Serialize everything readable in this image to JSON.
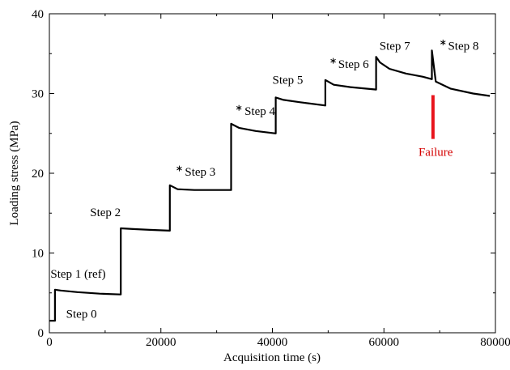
{
  "chart_data": {
    "type": "line",
    "xlabel": "Acquisition time (s)",
    "ylabel": "Loading stress (MPa)",
    "xlim": [
      0,
      80000
    ],
    "ylim": [
      0,
      40
    ],
    "x_ticks": [
      0,
      20000,
      40000,
      60000,
      80000
    ],
    "y_ticks": [
      0,
      10,
      20,
      30,
      40
    ],
    "grid": false,
    "colors": {
      "series": "#000000",
      "failure": "#e8141c"
    },
    "series": [
      {
        "x": [
          0,
          1000,
          1000,
          1000,
          2000,
          5000,
          9000,
          12800,
          12800,
          12800,
          15000,
          18000,
          21600,
          21600,
          21600,
          23000,
          26000,
          30000,
          32600,
          32600,
          32600,
          34000,
          37000,
          40600,
          40600,
          40600,
          42000,
          45000,
          49500,
          49500,
          49500,
          51000,
          54000,
          58600,
          58600,
          58600,
          59300,
          61000,
          64000,
          67000,
          68600,
          68600,
          68600,
          69300,
          72000,
          76000,
          79000
        ],
        "y": [
          1.5,
          1.5,
          4.8,
          5.4,
          5.3,
          5.1,
          4.9,
          4.8,
          11.5,
          13.1,
          13.0,
          12.9,
          12.8,
          16.5,
          18.5,
          18.0,
          17.9,
          17.9,
          17.9,
          25.0,
          26.2,
          25.7,
          25.3,
          25.0,
          28.0,
          29.5,
          29.2,
          28.9,
          28.5,
          30.5,
          31.7,
          31.1,
          30.8,
          30.5,
          32.5,
          34.6,
          33.9,
          33.1,
          32.5,
          32.1,
          31.8,
          33.0,
          35.4,
          31.5,
          30.6,
          30.0,
          29.7
        ]
      }
    ],
    "markers": [
      {
        "x": 23300,
        "y": 20.6
      },
      {
        "x": 34000,
        "y": 28.2
      },
      {
        "x": 50900,
        "y": 34.1
      },
      {
        "x": 70600,
        "y": 36.4
      }
    ],
    "failure_line": {
      "x": 68800,
      "y_from": 24.3,
      "y_to": 29.8
    },
    "annotations": [
      {
        "text": "Step 0",
        "x": 3000,
        "y": 1.9
      },
      {
        "text": "Step 1 (ref)",
        "x": 200,
        "y": 6.9
      },
      {
        "text": "Step 2",
        "x": 7300,
        "y": 14.6
      },
      {
        "text": "Step 3",
        "x": 24300,
        "y": 19.7
      },
      {
        "text": "Step 4",
        "x": 35000,
        "y": 27.3
      },
      {
        "text": "Step 5",
        "x": 40000,
        "y": 31.2
      },
      {
        "text": "Step 6",
        "x": 51800,
        "y": 33.2
      },
      {
        "text": "Step 7",
        "x": 59200,
        "y": 35.5
      },
      {
        "text": "Step 8",
        "x": 71500,
        "y": 35.5
      },
      {
        "text": "Failure",
        "x": 66200,
        "y": 22.2,
        "kind": "failure"
      }
    ]
  }
}
